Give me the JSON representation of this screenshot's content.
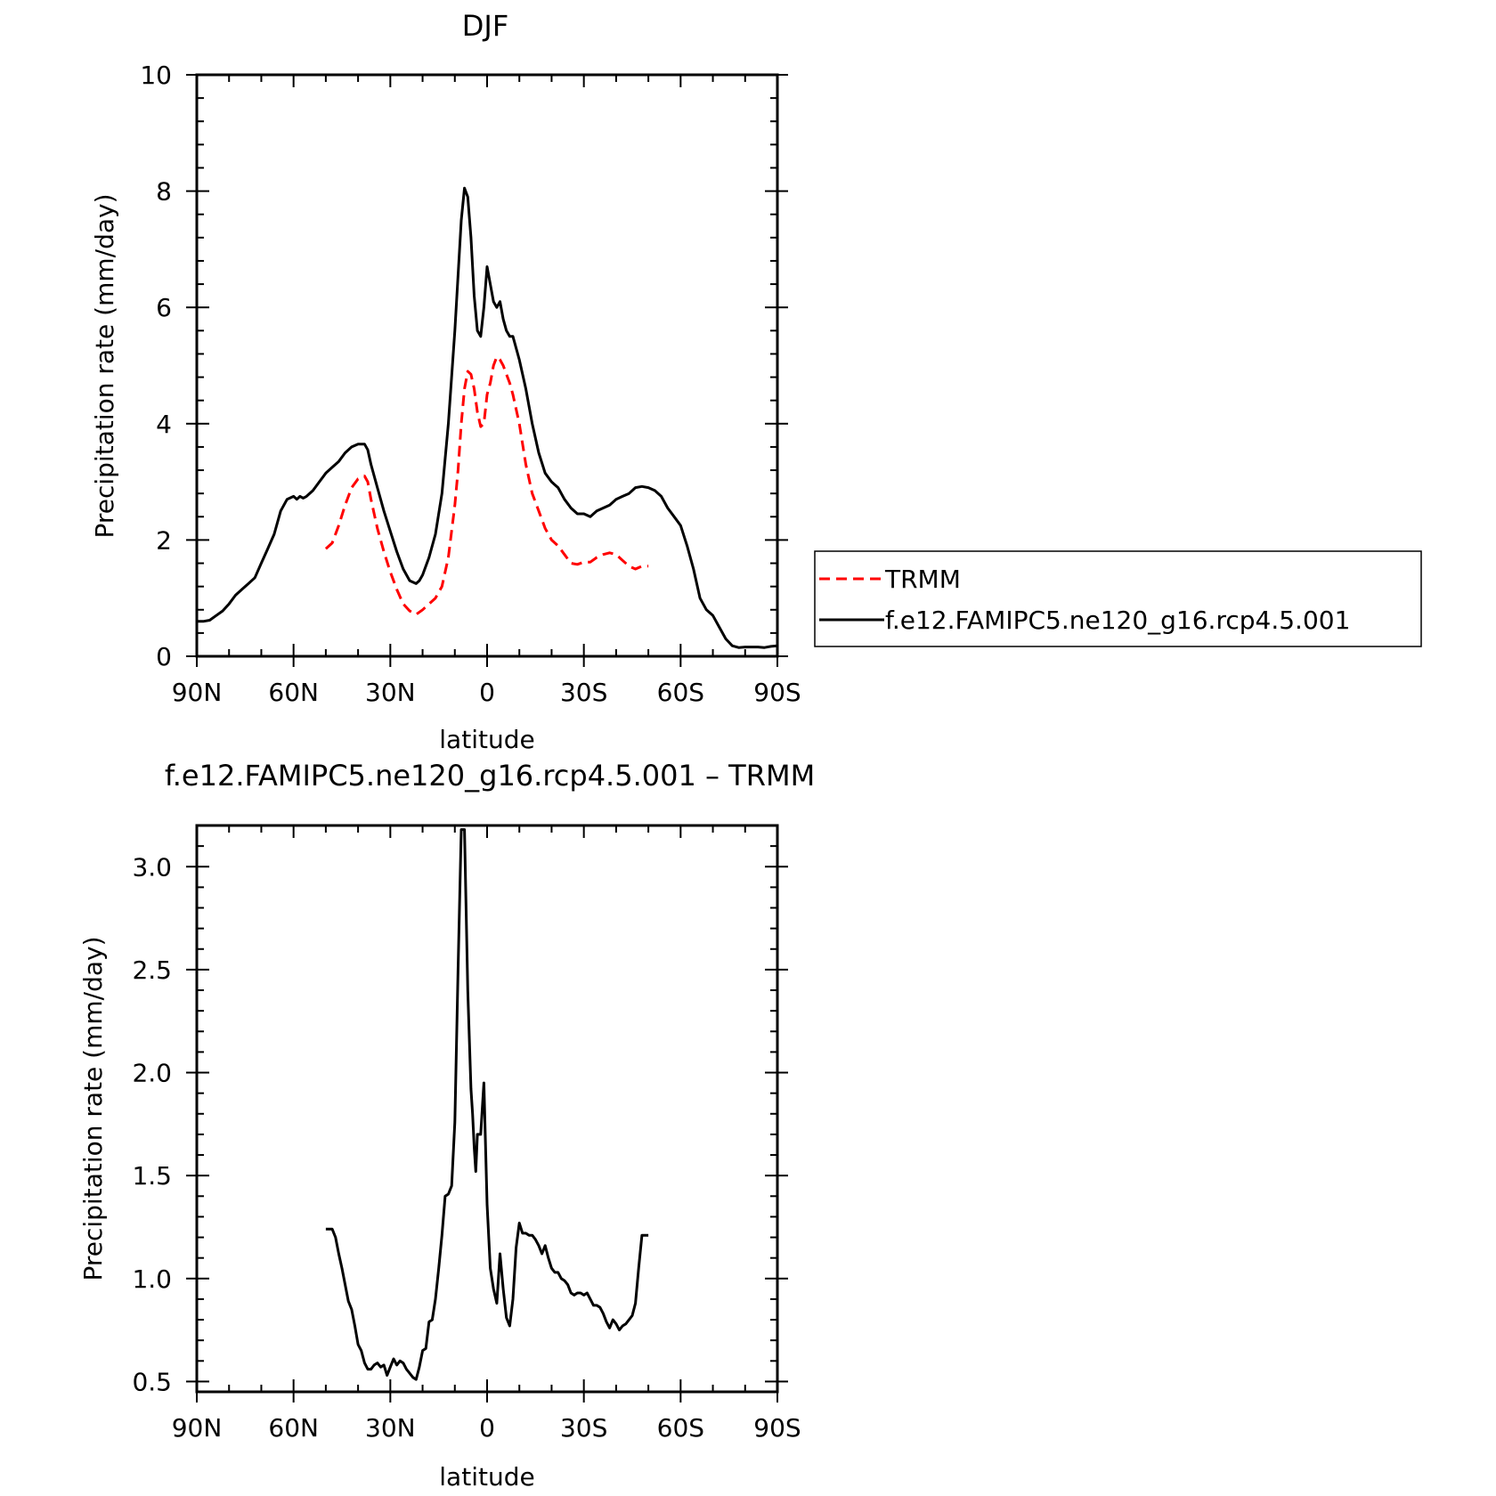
{
  "chart_data": [
    {
      "type": "line",
      "title": "DJF",
      "xlabel": "latitude",
      "ylabel": "Precipitation rate (mm/day)",
      "xlim": [
        90,
        -90
      ],
      "ylim": [
        0,
        10
      ],
      "x_ticks": [
        {
          "value": 90,
          "label": "90N"
        },
        {
          "value": 60,
          "label": "60N"
        },
        {
          "value": 30,
          "label": "30N"
        },
        {
          "value": 0,
          "label": "0"
        },
        {
          "value": -30,
          "label": "30S"
        },
        {
          "value": -60,
          "label": "60S"
        },
        {
          "value": -90,
          "label": "90S"
        }
      ],
      "y_ticks": [
        {
          "value": 0,
          "label": "0"
        },
        {
          "value": 2,
          "label": "2"
        },
        {
          "value": 4,
          "label": "4"
        },
        {
          "value": 6,
          "label": "6"
        },
        {
          "value": 8,
          "label": "8"
        },
        {
          "value": 10,
          "label": "10"
        }
      ],
      "grid": false,
      "legend": {
        "placement": "right",
        "entries": [
          "TRMM",
          "f.e12.FAMIPC5.ne120_g16.rcp4.5.001"
        ]
      },
      "series": [
        {
          "name": "TRMM",
          "color": "#ff0000",
          "dash": "dashed",
          "x": [
            50,
            48,
            46,
            44,
            42,
            40,
            38,
            37,
            36,
            34,
            32,
            30,
            28,
            26,
            24,
            22,
            20,
            18,
            16,
            14,
            12,
            10,
            9,
            8,
            7,
            6,
            5,
            4,
            3,
            2,
            1,
            0,
            -1,
            -2,
            -3,
            -4,
            -5,
            -6,
            -7,
            -8,
            -10,
            -12,
            -14,
            -16,
            -18,
            -20,
            -22,
            -24,
            -26,
            -28,
            -30,
            -32,
            -34,
            -36,
            -38,
            -40,
            -42,
            -44,
            -46,
            -48,
            -50
          ],
          "y": [
            1.85,
            1.95,
            2.25,
            2.6,
            2.9,
            3.05,
            3.1,
            3.0,
            2.7,
            2.2,
            1.8,
            1.45,
            1.15,
            0.9,
            0.78,
            0.72,
            0.8,
            0.9,
            1.0,
            1.2,
            1.7,
            2.6,
            3.2,
            4.0,
            4.6,
            4.9,
            4.85,
            4.6,
            4.2,
            3.95,
            4.0,
            4.5,
            4.7,
            5.0,
            5.15,
            5.1,
            5.0,
            4.85,
            4.7,
            4.5,
            4.0,
            3.3,
            2.8,
            2.5,
            2.2,
            2.0,
            1.9,
            1.75,
            1.6,
            1.58,
            1.62,
            1.62,
            1.7,
            1.75,
            1.78,
            1.75,
            1.65,
            1.55,
            1.5,
            1.55,
            1.55
          ]
        },
        {
          "name": "f.e12.FAMIPC5.ne120_g16.rcp4.5.001",
          "color": "#000000",
          "dash": "solid",
          "x": [
            90,
            88,
            86,
            84,
            82,
            80,
            78,
            76,
            74,
            72,
            70,
            68,
            66,
            64,
            62,
            60,
            59,
            58,
            57,
            56,
            54,
            52,
            50,
            48,
            46,
            44,
            42,
            40,
            38,
            37,
            36,
            34,
            32,
            30,
            28,
            26,
            24,
            22,
            21,
            20,
            18,
            16,
            14,
            12,
            10,
            8,
            7,
            6,
            5,
            4,
            3,
            2,
            1,
            0,
            -1,
            -2,
            -3,
            -4,
            -5,
            -6,
            -7,
            -8,
            -10,
            -12,
            -14,
            -16,
            -18,
            -20,
            -22,
            -24,
            -26,
            -28,
            -30,
            -32,
            -34,
            -36,
            -38,
            -40,
            -42,
            -44,
            -46,
            -48,
            -50,
            -52,
            -54,
            -56,
            -58,
            -60,
            -62,
            -64,
            -66,
            -68,
            -70,
            -72,
            -74,
            -76,
            -78,
            -80,
            -82,
            -84,
            -86,
            -88,
            -90
          ],
          "y": [
            0.6,
            0.6,
            0.62,
            0.7,
            0.78,
            0.9,
            1.05,
            1.15,
            1.25,
            1.35,
            1.6,
            1.85,
            2.1,
            2.5,
            2.7,
            2.75,
            2.7,
            2.75,
            2.72,
            2.75,
            2.85,
            3.0,
            3.15,
            3.25,
            3.35,
            3.5,
            3.6,
            3.65,
            3.65,
            3.55,
            3.3,
            2.9,
            2.5,
            2.15,
            1.8,
            1.5,
            1.3,
            1.25,
            1.3,
            1.4,
            1.7,
            2.1,
            2.8,
            4.0,
            5.6,
            7.5,
            8.05,
            7.9,
            7.2,
            6.2,
            5.6,
            5.5,
            6.0,
            6.7,
            6.4,
            6.1,
            6.0,
            6.1,
            5.8,
            5.6,
            5.5,
            5.5,
            5.1,
            4.6,
            4.0,
            3.5,
            3.15,
            3.0,
            2.9,
            2.7,
            2.55,
            2.45,
            2.45,
            2.4,
            2.5,
            2.55,
            2.6,
            2.7,
            2.75,
            2.8,
            2.9,
            2.92,
            2.9,
            2.85,
            2.75,
            2.55,
            2.4,
            2.25,
            1.9,
            1.5,
            1.0,
            0.8,
            0.7,
            0.5,
            0.3,
            0.18,
            0.15,
            0.16,
            0.16,
            0.16,
            0.15,
            0.17,
            0.18
          ]
        }
      ]
    },
    {
      "type": "line",
      "title": "f.e12.FAMIPC5.ne120_g16.rcp4.5.001 – TRMM",
      "xlabel": "latitude",
      "ylabel": "Precipitation rate (mm/day)",
      "xlim": [
        90,
        -90
      ],
      "ylim": [
        0.45,
        3.2
      ],
      "x_ticks": [
        {
          "value": 90,
          "label": "90N"
        },
        {
          "value": 60,
          "label": "60N"
        },
        {
          "value": 30,
          "label": "30N"
        },
        {
          "value": 0,
          "label": "0"
        },
        {
          "value": -30,
          "label": "30S"
        },
        {
          "value": -60,
          "label": "60S"
        },
        {
          "value": -90,
          "label": "90S"
        }
      ],
      "y_ticks": [
        {
          "value": 0.5,
          "label": "0.5"
        },
        {
          "value": 1.0,
          "label": "1.0"
        },
        {
          "value": 1.5,
          "label": "1.5"
        },
        {
          "value": 2.0,
          "label": "2.0"
        },
        {
          "value": 2.5,
          "label": "2.5"
        },
        {
          "value": 3.0,
          "label": "3.0"
        }
      ],
      "grid": false,
      "series": [
        {
          "color": "#000000",
          "dash": "solid",
          "x": [
            50,
            49,
            48,
            47,
            46,
            45,
            44,
            43,
            42,
            41,
            40,
            39,
            38,
            37,
            36,
            35,
            34,
            33,
            32,
            31,
            30,
            29,
            28,
            27,
            26,
            25,
            24,
            23,
            22,
            21,
            20,
            19,
            18,
            17,
            16,
            15,
            14,
            13,
            12,
            11,
            10,
            9,
            8,
            7,
            6,
            5,
            4.5,
            4,
            3.5,
            3,
            2,
            1,
            0,
            -1,
            -2,
            -3,
            -4,
            -5,
            -6,
            -7,
            -8,
            -9,
            -10,
            -11,
            -12,
            -13,
            -14,
            -15,
            -16,
            -17,
            -18,
            -19,
            -20,
            -21,
            -22,
            -23,
            -24,
            -25,
            -26,
            -27,
            -28,
            -29,
            -30,
            -31,
            -32,
            -33,
            -34,
            -35,
            -36,
            -37,
            -38,
            -39,
            -40,
            -41,
            -42,
            -43,
            -44,
            -45,
            -46,
            -47,
            -48,
            -49,
            -50
          ],
          "y": [
            1.24,
            1.24,
            1.24,
            1.2,
            1.12,
            1.05,
            0.97,
            0.89,
            0.85,
            0.77,
            0.68,
            0.65,
            0.59,
            0.56,
            0.56,
            0.58,
            0.59,
            0.57,
            0.58,
            0.53,
            0.57,
            0.61,
            0.58,
            0.6,
            0.59,
            0.56,
            0.54,
            0.52,
            0.51,
            0.57,
            0.65,
            0.66,
            0.79,
            0.8,
            0.9,
            1.05,
            1.21,
            1.4,
            1.41,
            1.45,
            1.76,
            2.5,
            3.18,
            3.18,
            2.4,
            1.92,
            1.8,
            1.64,
            1.52,
            1.7,
            1.7,
            1.95,
            1.36,
            1.05,
            0.95,
            0.88,
            1.12,
            0.95,
            0.81,
            0.77,
            0.9,
            1.15,
            1.27,
            1.22,
            1.22,
            1.21,
            1.21,
            1.19,
            1.16,
            1.12,
            1.16,
            1.1,
            1.05,
            1.03,
            1.03,
            1.0,
            0.99,
            0.97,
            0.93,
            0.92,
            0.93,
            0.93,
            0.92,
            0.93,
            0.9,
            0.87,
            0.87,
            0.86,
            0.83,
            0.79,
            0.76,
            0.8,
            0.78,
            0.75,
            0.77,
            0.78,
            0.8,
            0.82,
            0.88,
            1.05,
            1.21,
            1.21,
            1.21
          ]
        }
      ]
    }
  ]
}
